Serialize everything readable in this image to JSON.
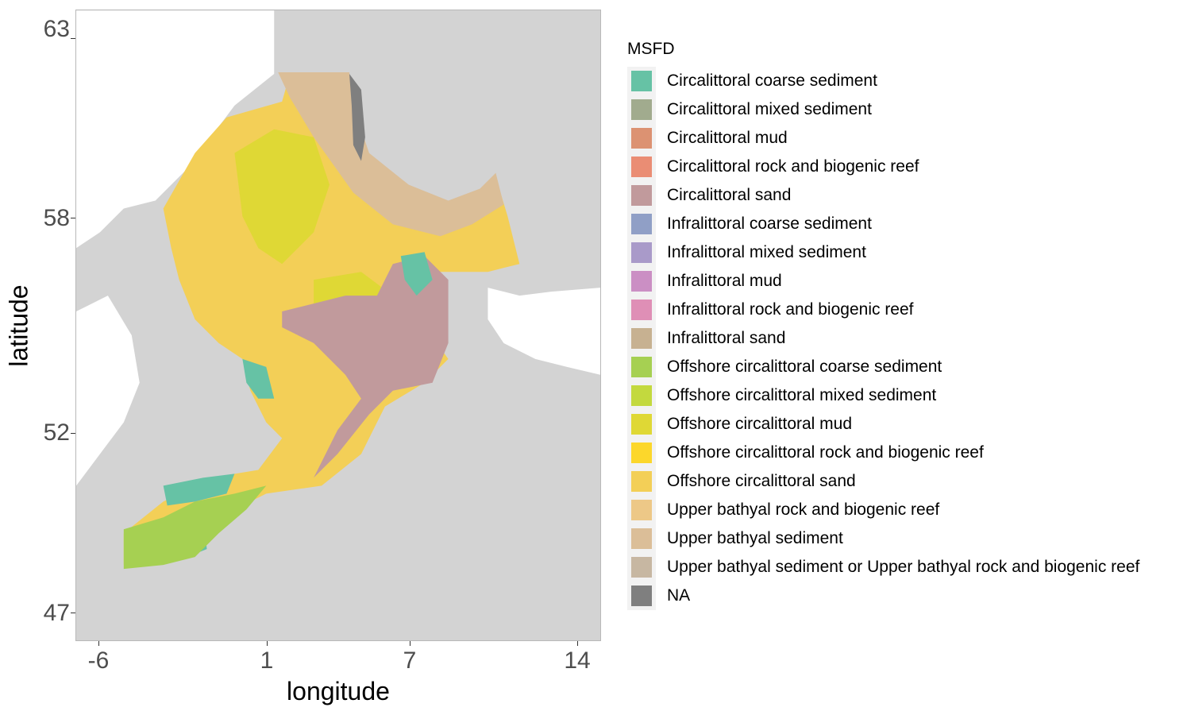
{
  "axes": {
    "x_label": "longitude",
    "y_label": "latitude",
    "x_ticks": [
      "-6",
      "1",
      "7",
      "14"
    ],
    "y_ticks": [
      "63",
      "58",
      "52",
      "47"
    ]
  },
  "map": {
    "region": "North Sea and English Channel",
    "land_color": "#d3d3d3",
    "border_color": "#a8a8a8"
  },
  "legend": {
    "title": "MSFD",
    "items": [
      {
        "label": "Circalittoral coarse sediment",
        "color": "#66c2a5"
      },
      {
        "label": "Circalittoral mixed sediment",
        "color": "#a1ab8e"
      },
      {
        "label": "Circalittoral mud",
        "color": "#dc9272"
      },
      {
        "label": "Circalittoral rock and biogenic reef",
        "color": "#ea8d74"
      },
      {
        "label": "Circalittoral sand",
        "color": "#c19a9c"
      },
      {
        "label": "Infralittoral coarse sediment",
        "color": "#909fc6"
      },
      {
        "label": "Infralittoral mixed sediment",
        "color": "#a99ac9"
      },
      {
        "label": "Infralittoral mud",
        "color": "#cb8fc4"
      },
      {
        "label": "Infralittoral rock and biogenic reef",
        "color": "#df8fb6"
      },
      {
        "label": "Infralittoral sand",
        "color": "#c7b191"
      },
      {
        "label": "Offshore circalittoral coarse sediment",
        "color": "#a6d052"
      },
      {
        "label": "Offshore circalittoral mixed sediment",
        "color": "#c3d93e"
      },
      {
        "label": "Offshore circalittoral mud",
        "color": "#dfd835"
      },
      {
        "label": "Offshore circalittoral rock and biogenic reef",
        "color": "#fcd72b"
      },
      {
        "label": "Offshore circalittoral sand",
        "color": "#f3cf57"
      },
      {
        "label": "Upper bathyal rock and biogenic reef",
        "color": "#edc887"
      },
      {
        "label": "Upper bathyal sediment",
        "color": "#dbbe98"
      },
      {
        "label": "Upper bathyal sediment or Upper bathyal rock and biogenic reef",
        "color": "#c7b7a2"
      },
      {
        "label": "NA",
        "color": "#7f7f7f"
      }
    ]
  }
}
